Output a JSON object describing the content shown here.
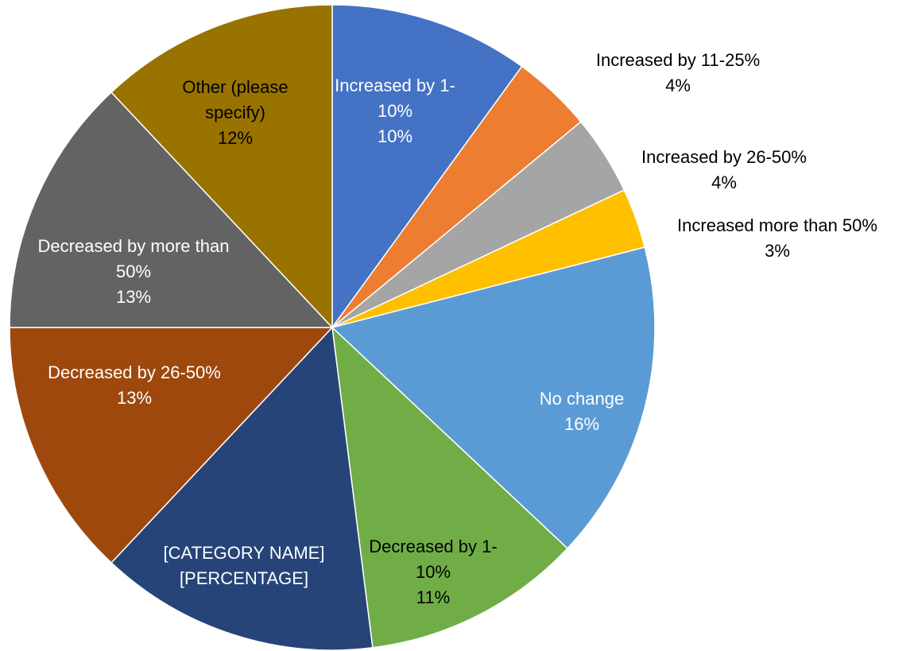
{
  "chart_data": {
    "type": "pie",
    "categories": [
      "Increased by 1-10%",
      "Increased by 11-25%",
      "Increased by 26-50%",
      "Increased more than 50%",
      "No change",
      "Decreased by 1-10%",
      "[CATEGORY NAME]",
      "Decreased by 26-50%",
      "Decreased by more than 50%",
      "Other (please specify)"
    ],
    "values": [
      10,
      4,
      4,
      3,
      16,
      11,
      14,
      13,
      13,
      12
    ],
    "value_labels": [
      "10%",
      "4%",
      "4%",
      "3%",
      "16%",
      "11%",
      "[PERCENTAGE]",
      "13%",
      "13%",
      "12%"
    ],
    "colors": [
      "#4472c4",
      "#ed7d31",
      "#a5a5a5",
      "#ffc000",
      "#5b9bd5",
      "#70ad47",
      "#264478",
      "#9e480e",
      "#636363",
      "#997300"
    ]
  }
}
